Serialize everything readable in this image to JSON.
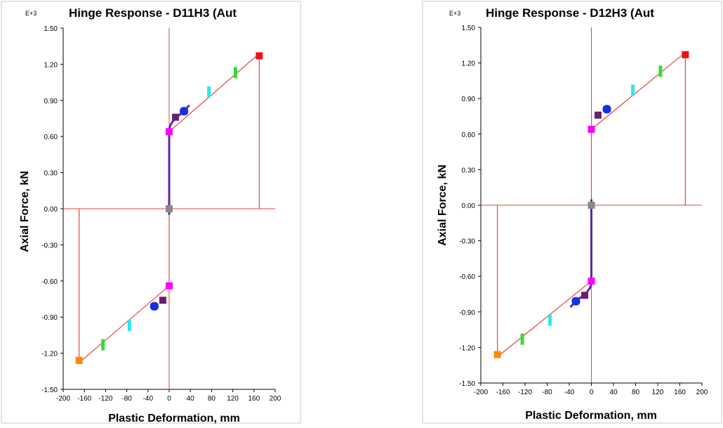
{
  "chart_data": [
    {
      "type": "line",
      "title": "Hinge Response - D11H3 (Aut",
      "exponent_label": "E+3",
      "xlabel": "Plastic Deformation, mm",
      "ylabel": "Axial Force, kN",
      "xlim": [
        -200,
        200
      ],
      "ylim": [
        -1.5,
        1.5
      ],
      "x_ticks": [
        -200,
        -160,
        -120,
        -80,
        -40,
        0,
        40,
        80,
        120,
        160,
        200
      ],
      "y_ticks": [
        "1.50",
        "1.20",
        "0.90",
        "0.60",
        "0.30",
        "0.00",
        "-0.30",
        "-0.60",
        "-0.90",
        "-1.20",
        "-1.50"
      ],
      "colors": {
        "backbone": "#e8413c",
        "response": "#5a2aa8",
        "frame": "#c8c8c8"
      },
      "series": [
        {
          "x": [
            -170,
            -170,
            -165,
            0,
            0,
            0,
            0,
            165,
            170,
            170
          ],
          "y": [
            0,
            -1.26,
            -1.26,
            -0.64,
            0,
            0,
            0.64,
            1.27,
            1.27,
            0
          ]
        },
        {
          "x": [
            0,
            0,
            0,
            0,
            1,
            3,
            6,
            12,
            20,
            28,
            38
          ],
          "y": [
            -0.05,
            0,
            0.3,
            0.64,
            0.68,
            0.7,
            0.72,
            0.76,
            0.78,
            0.81,
            0.86
          ]
        }
      ],
      "markers": [
        {
          "x": 0,
          "y": 0,
          "color": "#888888"
        },
        {
          "x": 0,
          "y": 0.64,
          "color": "#ff00ff"
        },
        {
          "x": 12,
          "y": 0.76,
          "color": "#6b1e6b"
        },
        {
          "x": 28,
          "y": 0.81,
          "color": "#1530e0"
        },
        {
          "x": 75,
          "y": 0.97,
          "color": "#29e8f0"
        },
        {
          "x": 125,
          "y": 1.13,
          "color": "#33dd33"
        },
        {
          "x": 170,
          "y": 1.27,
          "color": "#ee1111"
        },
        {
          "x": 0,
          "y": -0.64,
          "color": "#ff00ff"
        },
        {
          "x": -12,
          "y": -0.76,
          "color": "#6b1e6b"
        },
        {
          "x": -28,
          "y": -0.81,
          "color": "#1530e0"
        },
        {
          "x": -75,
          "y": -0.97,
          "color": "#29e8f0"
        },
        {
          "x": -125,
          "y": -1.13,
          "color": "#33dd33"
        },
        {
          "x": -170,
          "y": -1.26,
          "color": "#ff8800"
        }
      ]
    },
    {
      "type": "line",
      "title": "Hinge Response - D12H3 (Aut",
      "exponent_label": "E+3",
      "xlabel": "Plastic Deformation, mm",
      "ylabel": "Axial Force, kN",
      "xlim": [
        -200,
        200
      ],
      "ylim": [
        -1.5,
        1.5
      ],
      "x_ticks": [
        -200,
        -160,
        -120,
        -80,
        -40,
        0,
        40,
        80,
        120,
        160,
        200
      ],
      "y_ticks": [
        "1.50",
        "1.20",
        "0.90",
        "0.60",
        "0.30",
        "0.00",
        "-0.30",
        "-0.60",
        "-0.90",
        "-1.20",
        "-1.50"
      ],
      "colors": {
        "backbone": "#e8413c",
        "response": "#5a2aa8",
        "frame": "#c8c8c8"
      },
      "series": [
        {
          "x": [
            -170,
            -170,
            -165,
            0,
            0,
            0,
            0,
            165,
            170,
            170
          ],
          "y": [
            0,
            -1.26,
            -1.26,
            -0.64,
            0,
            0,
            0.64,
            1.27,
            1.27,
            0
          ]
        },
        {
          "x": [
            0,
            0,
            0,
            0,
            -1,
            -3,
            -6,
            -12,
            -20,
            -28,
            -38
          ],
          "y": [
            0.05,
            0,
            -0.3,
            -0.64,
            -0.68,
            -0.7,
            -0.72,
            -0.76,
            -0.78,
            -0.81,
            -0.86
          ]
        }
      ],
      "markers": [
        {
          "x": 0,
          "y": 0,
          "color": "#888888"
        },
        {
          "x": 0,
          "y": 0.64,
          "color": "#ff00ff"
        },
        {
          "x": 12,
          "y": 0.76,
          "color": "#6b1e6b"
        },
        {
          "x": 28,
          "y": 0.81,
          "color": "#1530e0"
        },
        {
          "x": 75,
          "y": 0.97,
          "color": "#29e8f0"
        },
        {
          "x": 125,
          "y": 1.13,
          "color": "#33dd33"
        },
        {
          "x": 170,
          "y": 1.27,
          "color": "#ee1111"
        },
        {
          "x": 0,
          "y": -0.64,
          "color": "#ff00ff"
        },
        {
          "x": -12,
          "y": -0.76,
          "color": "#6b1e6b"
        },
        {
          "x": -28,
          "y": -0.81,
          "color": "#1530e0"
        },
        {
          "x": -75,
          "y": -0.97,
          "color": "#29e8f0"
        },
        {
          "x": -125,
          "y": -1.13,
          "color": "#33dd33"
        },
        {
          "x": -170,
          "y": -1.26,
          "color": "#ff8800"
        }
      ]
    }
  ]
}
